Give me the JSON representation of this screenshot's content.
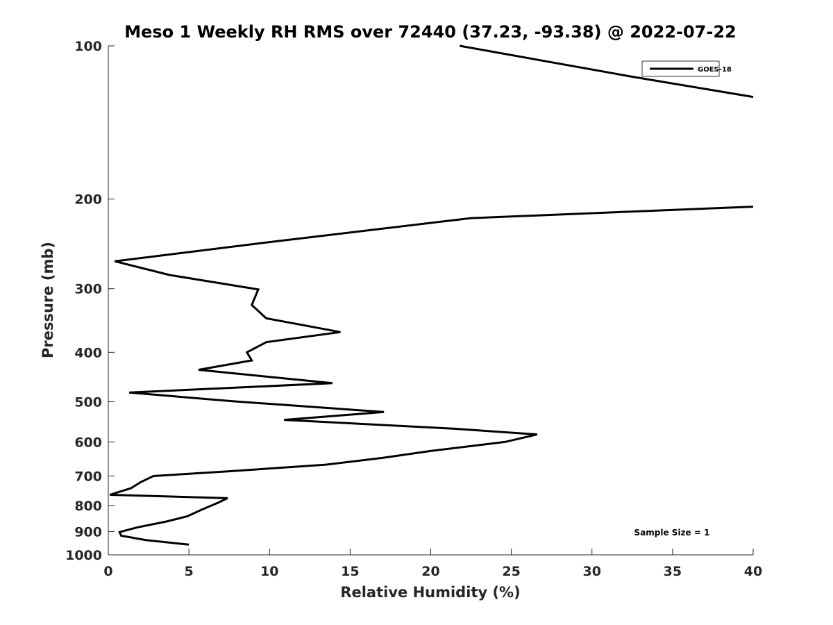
{
  "chart_data": {
    "type": "line",
    "title": "Meso 1 Weekly RH RMS over 72440 (37.23, -93.38) @ 2022-07-22",
    "xlabel": "Relative Humidity (%)",
    "ylabel": "Pressure (mb)",
    "xlim": [
      0,
      40
    ],
    "ylim": [
      100,
      1000
    ],
    "y_scale": "log",
    "y_reversed": true,
    "grid": false,
    "legend_position": "top-right",
    "x_ticks": [
      0,
      5,
      10,
      15,
      20,
      25,
      30,
      35,
      40
    ],
    "x_tick_labels": [
      "0",
      "5",
      "10",
      "15",
      "20",
      "25",
      "30",
      "35",
      "40"
    ],
    "y_ticks": [
      100,
      200,
      300,
      400,
      500,
      600,
      700,
      800,
      900,
      1000
    ],
    "y_tick_labels": [
      "100",
      "200",
      "300",
      "400",
      "500",
      "600",
      "700",
      "800",
      "900",
      "1000"
    ],
    "annotation": "Sample Size = 1",
    "series": [
      {
        "name": "GOES-18",
        "color": "#000000",
        "segments": [
          [
            {
              "x": 21.8,
              "y": 100
            },
            {
              "x": 32.5,
              "y": 115
            },
            {
              "x": 40.0,
              "y": 126
            }
          ],
          [
            {
              "x": 40.0,
              "y": 207
            },
            {
              "x": 22.5,
              "y": 218
            },
            {
              "x": 10.0,
              "y": 243
            },
            {
              "x": 0.4,
              "y": 265
            },
            {
              "x": 3.8,
              "y": 282
            },
            {
              "x": 9.3,
              "y": 301
            },
            {
              "x": 8.9,
              "y": 323
            },
            {
              "x": 9.8,
              "y": 343
            },
            {
              "x": 14.4,
              "y": 365
            },
            {
              "x": 9.8,
              "y": 382
            },
            {
              "x": 8.6,
              "y": 400
            },
            {
              "x": 8.9,
              "y": 415
            },
            {
              "x": 5.6,
              "y": 433
            },
            {
              "x": 13.9,
              "y": 460
            },
            {
              "x": 1.3,
              "y": 480
            },
            {
              "x": 7.7,
              "y": 499
            },
            {
              "x": 17.1,
              "y": 524
            },
            {
              "x": 10.9,
              "y": 543
            },
            {
              "x": 21.4,
              "y": 565
            },
            {
              "x": 26.6,
              "y": 580
            },
            {
              "x": 24.6,
              "y": 600
            },
            {
              "x": 20.0,
              "y": 625
            },
            {
              "x": 17.0,
              "y": 645
            },
            {
              "x": 13.5,
              "y": 665
            },
            {
              "x": 7.5,
              "y": 685
            },
            {
              "x": 2.8,
              "y": 700
            },
            {
              "x": 2.0,
              "y": 720
            },
            {
              "x": 1.4,
              "y": 740
            },
            {
              "x": 0.1,
              "y": 762
            },
            {
              "x": 7.4,
              "y": 774
            },
            {
              "x": 6.8,
              "y": 790
            },
            {
              "x": 5.8,
              "y": 815
            },
            {
              "x": 4.9,
              "y": 840
            },
            {
              "x": 3.6,
              "y": 860
            },
            {
              "x": 1.8,
              "y": 883
            },
            {
              "x": 0.7,
              "y": 902
            },
            {
              "x": 0.8,
              "y": 917
            },
            {
              "x": 2.3,
              "y": 935
            },
            {
              "x": 5.0,
              "y": 955
            }
          ]
        ]
      }
    ]
  }
}
